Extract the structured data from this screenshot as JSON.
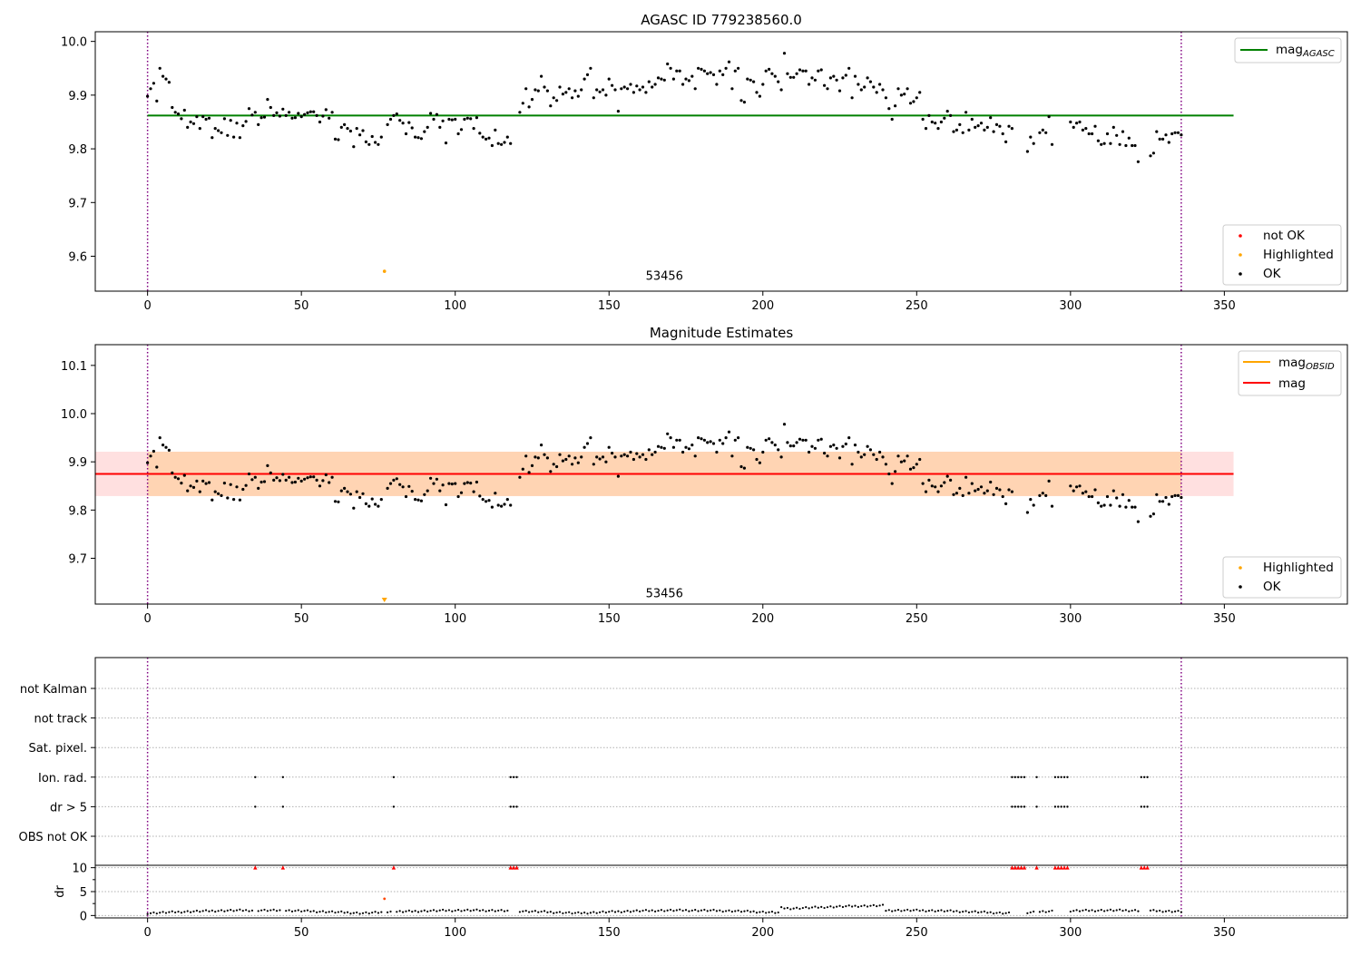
{
  "chart_data": [
    {
      "type": "scatter",
      "title": "AGASC ID 779238560.0",
      "xlim": [
        -17,
        390
      ],
      "ylim": [
        9.535,
        10.018
      ],
      "xticks": [
        0,
        50,
        100,
        150,
        200,
        250,
        300,
        350
      ],
      "yticks": [
        9.6,
        9.7,
        9.8,
        9.9,
        10.0
      ],
      "vlines": [
        0,
        336
      ],
      "annotations": [
        {
          "text": "53456",
          "x": 168,
          "y": 9.556
        }
      ],
      "hlines": [
        {
          "name": "mag",
          "sub": "AGASC",
          "y": 9.862,
          "x": [
            0,
            353
          ],
          "color": "#008000"
        }
      ],
      "highlighted": [
        [
          77,
          9.572
        ]
      ],
      "legend_lines": [
        {
          "name": "mag",
          "sub": "AGASC",
          "color": "#008000"
        }
      ],
      "legend_points": [
        {
          "name": "not OK",
          "color": "#ff0000"
        },
        {
          "name": "Highlighted",
          "color": "#ffa500"
        },
        {
          "name": "OK",
          "color": "#000000"
        }
      ]
    },
    {
      "type": "scatter",
      "title": "Magnitude Estimates",
      "xlim": [
        -17,
        390
      ],
      "ylim": [
        9.605,
        10.143
      ],
      "xticks": [
        0,
        50,
        100,
        150,
        200,
        250,
        300,
        350
      ],
      "yticks": [
        9.7,
        9.8,
        9.9,
        10.0,
        10.1
      ],
      "vlines": [
        0,
        336
      ],
      "annotations": [
        {
          "text": "53456",
          "x": 168,
          "y": 9.619
        }
      ],
      "band": {
        "y": [
          9.829,
          9.921
        ],
        "x": [
          -17,
          353
        ],
        "obs_x": [
          0,
          336
        ]
      },
      "hlines": [
        {
          "name": "mag",
          "sub": "OBSID",
          "y": 9.875,
          "x": [
            0,
            336
          ],
          "color": "#ffa500"
        },
        {
          "name": "mag",
          "y": 9.875,
          "x": [
            -17,
            353
          ],
          "color": "#ff0000"
        }
      ],
      "highlighted": [
        [
          77,
          9.61
        ]
      ],
      "legend_lines": [
        {
          "name": "mag",
          "sub": "OBSID",
          "color": "#ffa500"
        },
        {
          "name": "mag",
          "color": "#ff0000"
        }
      ],
      "legend_points": [
        {
          "name": "Highlighted",
          "color": "#ffa500"
        },
        {
          "name": "OK",
          "color": "#000000"
        }
      ]
    },
    {
      "type": "scatter",
      "title": "",
      "xlim": [
        -17,
        390
      ],
      "ylim": [
        -0.5,
        10.5
      ],
      "xticks": [
        0,
        50,
        100,
        150,
        200,
        250,
        300,
        350
      ],
      "yticks": [
        0,
        5,
        10
      ],
      "ylabel": "dr",
      "vlines": [
        0,
        336
      ],
      "flag_rows": [
        "not Kalman",
        "not track",
        "Sat. pixel.",
        "Ion. rad.",
        "dr > 5",
        "OBS not OK"
      ],
      "flag_points": {
        "Ion. rad.": [
          35,
          44,
          80,
          118,
          119,
          120,
          281,
          282,
          283,
          284,
          285,
          289,
          295,
          296,
          297,
          298,
          299,
          323,
          324,
          325
        ],
        "dr > 5": [
          35,
          44,
          80,
          118,
          119,
          120,
          281,
          282,
          283,
          284,
          285,
          289,
          295,
          296,
          297,
          298,
          299,
          323,
          324,
          325
        ]
      },
      "dr_high": [
        35,
        44,
        80,
        118,
        119,
        120,
        281,
        282,
        283,
        284,
        285,
        289,
        295,
        296,
        297,
        298,
        299,
        323,
        324,
        325
      ],
      "dr_high_value": 10,
      "dr_orange": [
        [
          77,
          3.5
        ]
      ]
    }
  ],
  "ok_mag": [
    [
      0,
      9.898
    ],
    [
      1,
      9.912
    ],
    [
      2,
      9.922
    ],
    [
      3,
      9.889
    ],
    [
      4,
      9.95
    ],
    [
      5,
      9.935
    ],
    [
      6,
      9.93
    ],
    [
      7,
      9.924
    ],
    [
      8,
      9.877
    ],
    [
      9,
      9.868
    ],
    [
      10,
      9.865
    ],
    [
      11,
      9.856
    ],
    [
      12,
      9.872
    ],
    [
      13,
      9.84
    ],
    [
      14,
      9.85
    ],
    [
      15,
      9.847
    ],
    [
      16,
      9.86
    ],
    [
      17,
      9.838
    ],
    [
      18,
      9.86
    ],
    [
      19,
      9.855
    ],
    [
      20,
      9.857
    ],
    [
      21,
      9.821
    ],
    [
      22,
      9.838
    ],
    [
      23,
      9.834
    ],
    [
      24,
      9.83
    ],
    [
      25,
      9.856
    ],
    [
      26,
      9.825
    ],
    [
      27,
      9.853
    ],
    [
      28,
      9.822
    ],
    [
      29,
      9.848
    ],
    [
      30,
      9.821
    ],
    [
      31,
      9.843
    ],
    [
      32,
      9.851
    ],
    [
      33,
      9.875
    ],
    [
      34,
      9.863
    ],
    [
      35,
      9.868
    ],
    [
      36,
      9.845
    ],
    [
      37,
      9.858
    ],
    [
      38,
      9.859
    ],
    [
      39,
      9.892
    ],
    [
      40,
      9.877
    ],
    [
      41,
      9.862
    ],
    [
      42,
      9.867
    ],
    [
      43,
      9.861
    ],
    [
      44,
      9.874
    ],
    [
      45,
      9.862
    ],
    [
      46,
      9.868
    ],
    [
      47,
      9.857
    ],
    [
      48,
      9.858
    ],
    [
      49,
      9.866
    ],
    [
      50,
      9.86
    ],
    [
      51,
      9.864
    ],
    [
      52,
      9.867
    ],
    [
      53,
      9.869
    ],
    [
      54,
      9.869
    ],
    [
      55,
      9.862
    ],
    [
      56,
      9.85
    ],
    [
      57,
      9.861
    ],
    [
      58,
      9.873
    ],
    [
      59,
      9.857
    ],
    [
      60,
      9.868
    ],
    [
      61,
      9.818
    ],
    [
      62,
      9.817
    ],
    [
      63,
      9.84
    ],
    [
      64,
      9.845
    ],
    [
      65,
      9.838
    ],
    [
      66,
      9.833
    ],
    [
      67,
      9.804
    ],
    [
      68,
      9.838
    ],
    [
      69,
      9.826
    ],
    [
      70,
      9.834
    ],
    [
      71,
      9.813
    ],
    [
      72,
      9.808
    ],
    [
      73,
      9.823
    ],
    [
      74,
      9.812
    ],
    [
      75,
      9.808
    ],
    [
      76,
      9.822
    ],
    [
      78,
      9.845
    ],
    [
      79,
      9.855
    ],
    [
      80,
      9.862
    ],
    [
      81,
      9.865
    ],
    [
      82,
      9.853
    ],
    [
      83,
      9.848
    ],
    [
      84,
      9.828
    ],
    [
      85,
      9.849
    ],
    [
      86,
      9.839
    ],
    [
      87,
      9.822
    ],
    [
      88,
      9.821
    ],
    [
      89,
      9.819
    ],
    [
      90,
      9.832
    ],
    [
      91,
      9.84
    ],
    [
      92,
      9.866
    ],
    [
      93,
      9.855
    ],
    [
      94,
      9.864
    ],
    [
      95,
      9.84
    ],
    [
      96,
      9.852
    ],
    [
      97,
      9.811
    ],
    [
      98,
      9.855
    ],
    [
      99,
      9.854
    ],
    [
      100,
      9.855
    ],
    [
      101,
      9.828
    ],
    [
      102,
      9.836
    ],
    [
      103,
      9.855
    ],
    [
      104,
      9.857
    ],
    [
      105,
      9.856
    ],
    [
      106,
      9.838
    ],
    [
      107,
      9.858
    ],
    [
      108,
      9.829
    ],
    [
      109,
      9.822
    ],
    [
      110,
      9.818
    ],
    [
      111,
      9.82
    ],
    [
      112,
      9.806
    ],
    [
      113,
      9.835
    ],
    [
      114,
      9.81
    ],
    [
      115,
      9.808
    ],
    [
      116,
      9.812
    ],
    [
      117,
      9.822
    ],
    [
      118,
      9.81
    ],
    [
      121,
      9.868
    ],
    [
      122,
      9.885
    ],
    [
      123,
      9.912
    ],
    [
      124,
      9.878
    ],
    [
      125,
      9.892
    ],
    [
      126,
      9.91
    ],
    [
      127,
      9.908
    ],
    [
      128,
      9.935
    ],
    [
      129,
      9.915
    ],
    [
      130,
      9.908
    ],
    [
      131,
      9.88
    ],
    [
      132,
      9.895
    ],
    [
      133,
      9.89
    ],
    [
      134,
      9.915
    ],
    [
      135,
      9.902
    ],
    [
      136,
      9.905
    ],
    [
      137,
      9.912
    ],
    [
      138,
      9.895
    ],
    [
      139,
      9.908
    ],
    [
      140,
      9.898
    ],
    [
      141,
      9.91
    ],
    [
      142,
      9.93
    ],
    [
      143,
      9.938
    ],
    [
      144,
      9.95
    ],
    [
      145,
      9.895
    ],
    [
      146,
      9.91
    ],
    [
      147,
      9.906
    ],
    [
      148,
      9.91
    ],
    [
      149,
      9.9
    ],
    [
      150,
      9.93
    ],
    [
      151,
      9.918
    ],
    [
      152,
      9.91
    ],
    [
      153,
      9.87
    ],
    [
      154,
      9.912
    ],
    [
      155,
      9.915
    ],
    [
      156,
      9.912
    ],
    [
      157,
      9.92
    ],
    [
      158,
      9.905
    ],
    [
      159,
      9.917
    ],
    [
      160,
      9.91
    ],
    [
      161,
      9.915
    ],
    [
      162,
      9.905
    ],
    [
      163,
      9.925
    ],
    [
      164,
      9.915
    ],
    [
      165,
      9.92
    ],
    [
      166,
      9.932
    ],
    [
      167,
      9.93
    ],
    [
      168,
      9.928
    ],
    [
      169,
      9.958
    ],
    [
      170,
      9.95
    ],
    [
      171,
      9.93
    ],
    [
      172,
      9.945
    ],
    [
      173,
      9.945
    ],
    [
      174,
      9.92
    ],
    [
      175,
      9.93
    ],
    [
      176,
      9.927
    ],
    [
      177,
      9.935
    ],
    [
      178,
      9.912
    ],
    [
      179,
      9.95
    ],
    [
      180,
      9.948
    ],
    [
      181,
      9.945
    ],
    [
      182,
      9.94
    ],
    [
      183,
      9.942
    ],
    [
      184,
      9.938
    ],
    [
      185,
      9.92
    ],
    [
      186,
      9.945
    ],
    [
      187,
      9.938
    ],
    [
      188,
      9.95
    ],
    [
      189,
      9.962
    ],
    [
      190,
      9.912
    ],
    [
      191,
      9.945
    ],
    [
      192,
      9.95
    ],
    [
      193,
      9.89
    ],
    [
      194,
      9.887
    ],
    [
      195,
      9.93
    ],
    [
      196,
      9.928
    ],
    [
      197,
      9.925
    ],
    [
      198,
      9.905
    ],
    [
      199,
      9.898
    ],
    [
      200,
      9.92
    ],
    [
      201,
      9.945
    ],
    [
      202,
      9.948
    ],
    [
      203,
      9.94
    ],
    [
      204,
      9.935
    ],
    [
      205,
      9.925
    ],
    [
      206,
      9.91
    ],
    [
      207,
      9.978
    ],
    [
      208,
      9.94
    ],
    [
      209,
      9.933
    ],
    [
      210,
      9.933
    ],
    [
      211,
      9.94
    ],
    [
      212,
      9.947
    ],
    [
      213,
      9.945
    ],
    [
      214,
      9.945
    ],
    [
      215,
      9.92
    ],
    [
      216,
      9.932
    ],
    [
      217,
      9.928
    ],
    [
      218,
      9.945
    ],
    [
      219,
      9.947
    ],
    [
      220,
      9.918
    ],
    [
      221,
      9.912
    ],
    [
      222,
      9.932
    ],
    [
      223,
      9.935
    ],
    [
      224,
      9.928
    ],
    [
      225,
      9.908
    ],
    [
      226,
      9.932
    ],
    [
      227,
      9.937
    ],
    [
      228,
      9.95
    ],
    [
      229,
      9.895
    ],
    [
      230,
      9.935
    ],
    [
      231,
      9.92
    ],
    [
      232,
      9.91
    ],
    [
      233,
      9.915
    ],
    [
      234,
      9.932
    ],
    [
      235,
      9.925
    ],
    [
      236,
      9.915
    ],
    [
      237,
      9.905
    ],
    [
      238,
      9.92
    ],
    [
      239,
      9.91
    ],
    [
      240,
      9.895
    ],
    [
      241,
      9.875
    ],
    [
      242,
      9.855
    ],
    [
      243,
      9.88
    ],
    [
      244,
      9.912
    ],
    [
      245,
      9.9
    ],
    [
      246,
      9.902
    ],
    [
      247,
      9.912
    ],
    [
      248,
      9.885
    ],
    [
      249,
      9.888
    ],
    [
      250,
      9.895
    ],
    [
      251,
      9.905
    ],
    [
      252,
      9.855
    ],
    [
      253,
      9.838
    ],
    [
      254,
      9.862
    ],
    [
      255,
      9.85
    ],
    [
      256,
      9.848
    ],
    [
      257,
      9.838
    ],
    [
      258,
      9.85
    ],
    [
      259,
      9.857
    ],
    [
      260,
      9.87
    ],
    [
      261,
      9.862
    ],
    [
      262,
      9.832
    ],
    [
      263,
      9.835
    ],
    [
      264,
      9.845
    ],
    [
      265,
      9.83
    ],
    [
      266,
      9.868
    ],
    [
      267,
      9.835
    ],
    [
      268,
      9.855
    ],
    [
      269,
      9.84
    ],
    [
      270,
      9.843
    ],
    [
      271,
      9.848
    ],
    [
      272,
      9.835
    ],
    [
      273,
      9.84
    ],
    [
      274,
      9.858
    ],
    [
      275,
      9.832
    ],
    [
      276,
      9.845
    ],
    [
      277,
      9.842
    ],
    [
      278,
      9.828
    ],
    [
      279,
      9.813
    ],
    [
      280,
      9.842
    ],
    [
      281,
      9.838
    ],
    [
      286,
      9.795
    ],
    [
      287,
      9.822
    ],
    [
      288,
      9.81
    ],
    [
      290,
      9.83
    ],
    [
      291,
      9.835
    ],
    [
      292,
      9.83
    ],
    [
      293,
      9.86
    ],
    [
      294,
      9.808
    ],
    [
      300,
      9.85
    ],
    [
      301,
      9.84
    ],
    [
      302,
      9.848
    ],
    [
      303,
      9.85
    ],
    [
      304,
      9.835
    ],
    [
      305,
      9.838
    ],
    [
      306,
      9.828
    ],
    [
      307,
      9.828
    ],
    [
      308,
      9.842
    ],
    [
      309,
      9.815
    ],
    [
      310,
      9.808
    ],
    [
      311,
      9.81
    ],
    [
      312,
      9.828
    ],
    [
      313,
      9.81
    ],
    [
      314,
      9.84
    ],
    [
      315,
      9.825
    ],
    [
      316,
      9.808
    ],
    [
      317,
      9.832
    ],
    [
      318,
      9.806
    ],
    [
      319,
      9.82
    ],
    [
      320,
      9.806
    ],
    [
      321,
      9.806
    ],
    [
      322,
      9.776
    ],
    [
      326,
      9.787
    ],
    [
      327,
      9.792
    ],
    [
      328,
      9.832
    ],
    [
      329,
      9.818
    ],
    [
      330,
      9.818
    ],
    [
      331,
      9.826
    ],
    [
      332,
      9.812
    ],
    [
      333,
      9.828
    ],
    [
      334,
      9.83
    ],
    [
      335,
      9.83
    ],
    [
      336,
      9.826
    ]
  ]
}
